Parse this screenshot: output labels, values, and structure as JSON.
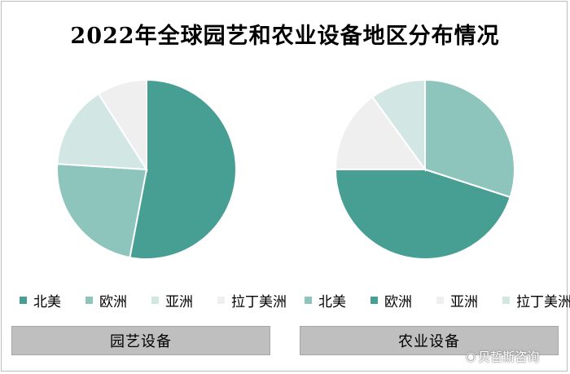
{
  "title": "2022年全球园艺和农业设备地区分布情况",
  "watermark": {
    "icon": "weibo-icon",
    "text": "贝哲斯咨询"
  },
  "chart_data": [
    {
      "type": "pie",
      "caption": "园艺设备",
      "categories": [
        "北美",
        "欧洲",
        "亚洲",
        "拉丁美洲"
      ],
      "values": [
        53,
        23,
        15,
        9
      ],
      "colors": [
        "#479e92",
        "#8dc4bc",
        "#d2e6e4",
        "#efefef"
      ],
      "legend": "bottom"
    },
    {
      "type": "pie",
      "caption": "农业设备",
      "categories": [
        "北美",
        "欧洲",
        "亚洲",
        "拉丁美洲"
      ],
      "values": [
        30,
        45,
        15,
        10
      ],
      "colors": [
        "#8dc4bc",
        "#479e92",
        "#efefef",
        "#d2e6e4"
      ],
      "legend": "bottom"
    }
  ]
}
